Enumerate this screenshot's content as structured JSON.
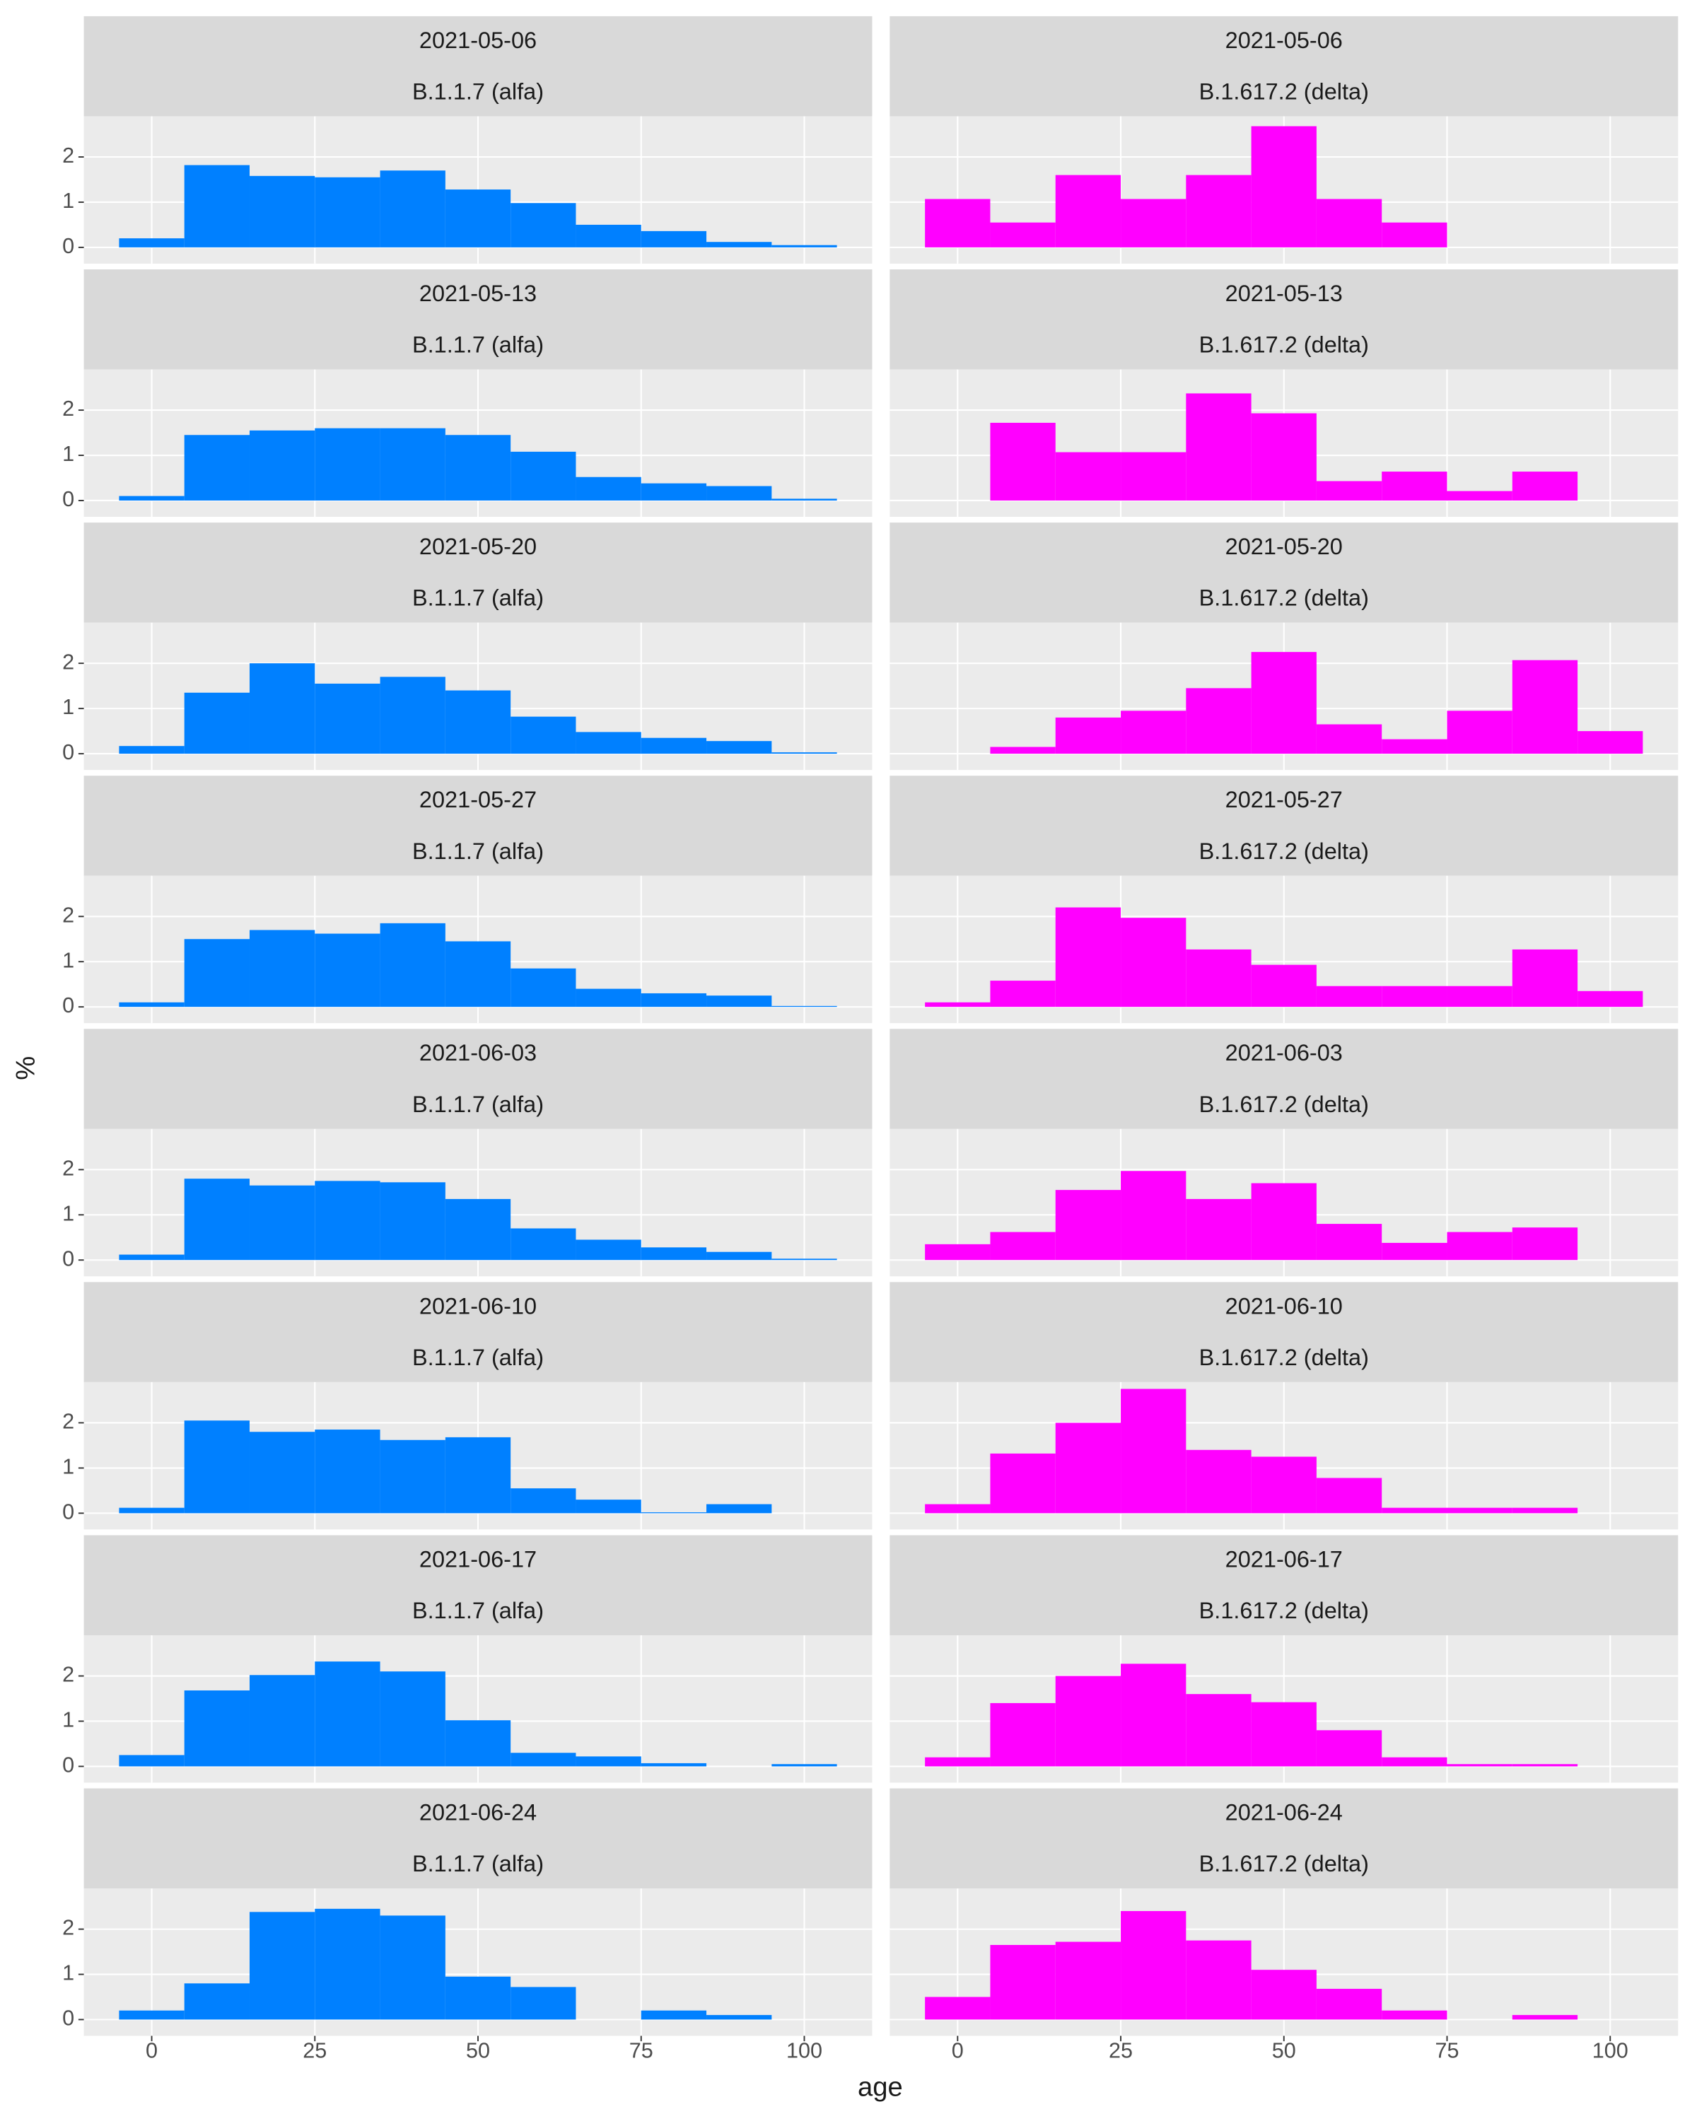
{
  "x_label": "age",
  "y_label": "%",
  "chart_data": [
    {
      "type": "histogram",
      "title": "2021-05-06",
      "subtitle": "B.1.1.7 (alfa)",
      "color": "#0080FF",
      "bins": [
        -5,
        5,
        15,
        25,
        35,
        45,
        55,
        65,
        75,
        85,
        95,
        105
      ],
      "values": [
        0.2,
        1.82,
        1.58,
        1.55,
        1.7,
        1.28,
        0.98,
        0.5,
        0.36,
        0.12,
        0.05
      ],
      "xlim": [
        -10.4,
        110.4
      ],
      "ylim": [
        -0.36,
        2.9
      ],
      "xticks": [
        0,
        25,
        50,
        75,
        100
      ],
      "yticks": [
        0,
        1,
        2
      ],
      "grid": true
    },
    {
      "type": "histogram",
      "title": "2021-05-06",
      "subtitle": "B.1.617.2 (delta)",
      "color": "#FF00FF",
      "bins": [
        -5,
        5,
        15,
        25,
        35,
        45,
        55,
        65,
        75,
        85,
        95,
        105
      ],
      "values": [
        1.07,
        0.55,
        1.6,
        1.07,
        1.6,
        2.68,
        1.07,
        0.55,
        0,
        0,
        0
      ],
      "xlim": [
        -10.4,
        110.4
      ],
      "ylim": [
        -0.36,
        2.9
      ],
      "xticks": [
        0,
        25,
        50,
        75,
        100
      ],
      "yticks": [
        0,
        1,
        2
      ],
      "grid": true
    },
    {
      "type": "histogram",
      "title": "2021-05-13",
      "subtitle": "B.1.1.7 (alfa)",
      "color": "#0080FF",
      "bins": [
        -5,
        5,
        15,
        25,
        35,
        45,
        55,
        65,
        75,
        85,
        95,
        105
      ],
      "values": [
        0.1,
        1.45,
        1.55,
        1.6,
        1.6,
        1.45,
        1.08,
        0.52,
        0.38,
        0.32,
        0.04
      ],
      "xlim": [
        -10.4,
        110.4
      ],
      "ylim": [
        -0.36,
        2.9
      ],
      "xticks": [
        0,
        25,
        50,
        75,
        100
      ],
      "yticks": [
        0,
        1,
        2
      ],
      "grid": true
    },
    {
      "type": "histogram",
      "title": "2021-05-13",
      "subtitle": "B.1.617.2 (delta)",
      "color": "#FF00FF",
      "bins": [
        -5,
        5,
        15,
        25,
        35,
        45,
        55,
        65,
        75,
        85,
        95,
        105
      ],
      "values": [
        0,
        1.72,
        1.07,
        1.07,
        2.37,
        1.93,
        0.43,
        0.64,
        0.21,
        0.64,
        0
      ],
      "xlim": [
        -10.4,
        110.4
      ],
      "ylim": [
        -0.36,
        2.9
      ],
      "xticks": [
        0,
        25,
        50,
        75,
        100
      ],
      "yticks": [
        0,
        1,
        2
      ],
      "grid": true
    },
    {
      "type": "histogram",
      "title": "2021-05-20",
      "subtitle": "B.1.1.7 (alfa)",
      "color": "#0080FF",
      "bins": [
        -5,
        5,
        15,
        25,
        35,
        45,
        55,
        65,
        75,
        85,
        95,
        105
      ],
      "values": [
        0.17,
        1.35,
        2.0,
        1.55,
        1.7,
        1.4,
        0.82,
        0.48,
        0.35,
        0.28,
        0.03
      ],
      "xlim": [
        -10.4,
        110.4
      ],
      "ylim": [
        -0.36,
        2.9
      ],
      "xticks": [
        0,
        25,
        50,
        75,
        100
      ],
      "yticks": [
        0,
        1,
        2
      ],
      "grid": true
    },
    {
      "type": "histogram",
      "title": "2021-05-20",
      "subtitle": "B.1.617.2 (delta)",
      "color": "#FF00FF",
      "bins": [
        -5,
        5,
        15,
        25,
        35,
        45,
        55,
        65,
        75,
        85,
        95,
        105
      ],
      "values": [
        0,
        0.15,
        0.8,
        0.95,
        1.45,
        2.25,
        0.65,
        0.32,
        0.95,
        2.07,
        0.5
      ],
      "xlim": [
        -10.4,
        110.4
      ],
      "ylim": [
        -0.36,
        2.9
      ],
      "xticks": [
        0,
        25,
        50,
        75,
        100
      ],
      "yticks": [
        0,
        1,
        2
      ],
      "grid": true
    },
    {
      "type": "histogram",
      "title": "2021-05-27",
      "subtitle": "B.1.1.7 (alfa)",
      "color": "#0080FF",
      "bins": [
        -5,
        5,
        15,
        25,
        35,
        45,
        55,
        65,
        75,
        85,
        95,
        105
      ],
      "values": [
        0.1,
        1.5,
        1.7,
        1.62,
        1.85,
        1.45,
        0.85,
        0.4,
        0.3,
        0.25,
        0.02
      ],
      "xlim": [
        -10.4,
        110.4
      ],
      "ylim": [
        -0.36,
        2.9
      ],
      "xticks": [
        0,
        25,
        50,
        75,
        100
      ],
      "yticks": [
        0,
        1,
        2
      ],
      "grid": true
    },
    {
      "type": "histogram",
      "title": "2021-05-27",
      "subtitle": "B.1.617.2 (delta)",
      "color": "#FF00FF",
      "bins": [
        -5,
        5,
        15,
        25,
        35,
        45,
        55,
        65,
        75,
        85,
        95,
        105
      ],
      "values": [
        0.1,
        0.58,
        2.2,
        1.97,
        1.27,
        0.93,
        0.46,
        0.46,
        0.46,
        1.27,
        0.35
      ],
      "xlim": [
        -10.4,
        110.4
      ],
      "ylim": [
        -0.36,
        2.9
      ],
      "xticks": [
        0,
        25,
        50,
        75,
        100
      ],
      "yticks": [
        0,
        1,
        2
      ],
      "grid": true
    },
    {
      "type": "histogram",
      "title": "2021-06-03",
      "subtitle": "B.1.1.7 (alfa)",
      "color": "#0080FF",
      "bins": [
        -5,
        5,
        15,
        25,
        35,
        45,
        55,
        65,
        75,
        85,
        95,
        105
      ],
      "values": [
        0.12,
        1.8,
        1.65,
        1.75,
        1.72,
        1.35,
        0.7,
        0.45,
        0.28,
        0.18,
        0.03
      ],
      "xlim": [
        -10.4,
        110.4
      ],
      "ylim": [
        -0.36,
        2.9
      ],
      "xticks": [
        0,
        25,
        50,
        75,
        100
      ],
      "yticks": [
        0,
        1,
        2
      ],
      "grid": true
    },
    {
      "type": "histogram",
      "title": "2021-06-03",
      "subtitle": "B.1.617.2 (delta)",
      "color": "#FF00FF",
      "bins": [
        -5,
        5,
        15,
        25,
        35,
        45,
        55,
        65,
        75,
        85,
        95,
        105
      ],
      "values": [
        0.35,
        0.62,
        1.55,
        1.97,
        1.35,
        1.7,
        0.8,
        0.38,
        0.62,
        0.72,
        0
      ],
      "xlim": [
        -10.4,
        110.4
      ],
      "ylim": [
        -0.36,
        2.9
      ],
      "xticks": [
        0,
        25,
        50,
        75,
        100
      ],
      "yticks": [
        0,
        1,
        2
      ],
      "grid": true
    },
    {
      "type": "histogram",
      "title": "2021-06-10",
      "subtitle": "B.1.1.7 (alfa)",
      "color": "#0080FF",
      "bins": [
        -5,
        5,
        15,
        25,
        35,
        45,
        55,
        65,
        75,
        85,
        95,
        105
      ],
      "values": [
        0.12,
        2.05,
        1.8,
        1.85,
        1.62,
        1.68,
        0.55,
        0.3,
        0.02,
        0.2,
        0
      ],
      "xlim": [
        -10.4,
        110.4
      ],
      "ylim": [
        -0.36,
        2.9
      ],
      "xticks": [
        0,
        25,
        50,
        75,
        100
      ],
      "yticks": [
        0,
        1,
        2
      ],
      "grid": true
    },
    {
      "type": "histogram",
      "title": "2021-06-10",
      "subtitle": "B.1.617.2 (delta)",
      "color": "#FF00FF",
      "bins": [
        -5,
        5,
        15,
        25,
        35,
        45,
        55,
        65,
        75,
        85,
        95,
        105
      ],
      "values": [
        0.2,
        1.32,
        2.0,
        2.75,
        1.4,
        1.25,
        0.78,
        0.12,
        0.12,
        0.12,
        0
      ],
      "xlim": [
        -10.4,
        110.4
      ],
      "ylim": [
        -0.36,
        2.9
      ],
      "xticks": [
        0,
        25,
        50,
        75,
        100
      ],
      "yticks": [
        0,
        1,
        2
      ],
      "grid": true
    },
    {
      "type": "histogram",
      "title": "2021-06-17",
      "subtitle": "B.1.1.7 (alfa)",
      "color": "#0080FF",
      "bins": [
        -5,
        5,
        15,
        25,
        35,
        45,
        55,
        65,
        75,
        85,
        95,
        105
      ],
      "values": [
        0.25,
        1.68,
        2.02,
        2.32,
        2.1,
        1.02,
        0.3,
        0.22,
        0.07,
        0,
        0.05
      ],
      "xlim": [
        -10.4,
        110.4
      ],
      "ylim": [
        -0.36,
        2.9
      ],
      "xticks": [
        0,
        25,
        50,
        75,
        100
      ],
      "yticks": [
        0,
        1,
        2
      ],
      "grid": true
    },
    {
      "type": "histogram",
      "title": "2021-06-17",
      "subtitle": "B.1.617.2 (delta)",
      "color": "#FF00FF",
      "bins": [
        -5,
        5,
        15,
        25,
        35,
        45,
        55,
        65,
        75,
        85,
        95,
        105
      ],
      "values": [
        0.2,
        1.4,
        2.0,
        2.27,
        1.6,
        1.42,
        0.8,
        0.2,
        0.05,
        0.05,
        0
      ],
      "xlim": [
        -10.4,
        110.4
      ],
      "ylim": [
        -0.36,
        2.9
      ],
      "xticks": [
        0,
        25,
        50,
        75,
        100
      ],
      "yticks": [
        0,
        1,
        2
      ],
      "grid": true
    },
    {
      "type": "histogram",
      "title": "2021-06-24",
      "subtitle": "B.1.1.7 (alfa)",
      "color": "#0080FF",
      "bins": [
        -5,
        5,
        15,
        25,
        35,
        45,
        55,
        65,
        75,
        85,
        95,
        105
      ],
      "values": [
        0.2,
        0.8,
        2.38,
        2.45,
        2.3,
        0.95,
        0.72,
        0,
        0.2,
        0.1,
        0
      ],
      "xlim": [
        -10.4,
        110.4
      ],
      "ylim": [
        -0.36,
        2.9
      ],
      "xticks": [
        0,
        25,
        50,
        75,
        100
      ],
      "yticks": [
        0,
        1,
        2
      ],
      "grid": true
    },
    {
      "type": "histogram",
      "title": "2021-06-24",
      "subtitle": "B.1.617.2 (delta)",
      "color": "#FF00FF",
      "bins": [
        -5,
        5,
        15,
        25,
        35,
        45,
        55,
        65,
        75,
        85,
        95,
        105
      ],
      "values": [
        0.5,
        1.65,
        1.72,
        2.4,
        1.75,
        1.1,
        0.68,
        0.2,
        0,
        0.1,
        0
      ],
      "xlim": [
        -10.4,
        110.4
      ],
      "ylim": [
        -0.36,
        2.9
      ],
      "xticks": [
        0,
        25,
        50,
        75,
        100
      ],
      "yticks": [
        0,
        1,
        2
      ],
      "grid": true
    }
  ]
}
